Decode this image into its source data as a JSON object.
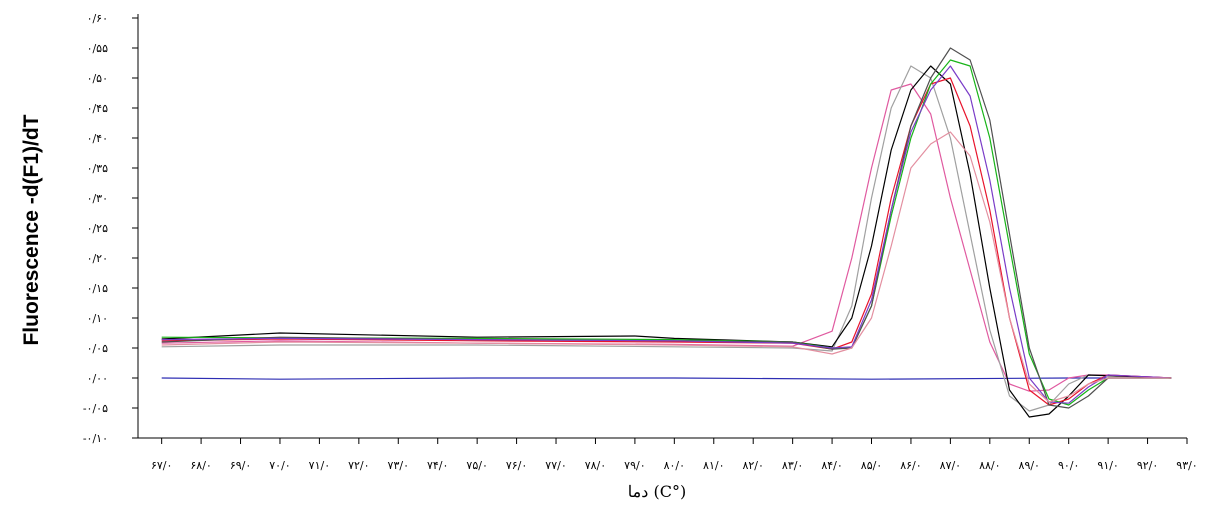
{
  "chart_data": {
    "type": "line",
    "title": "",
    "ylabel": "Fluorescence -d(F1)/dT",
    "xlabel": "(°C) دما",
    "xlim": [
      66.4,
      93.0
    ],
    "ylim": [
      -0.1,
      0.6
    ],
    "grid": false,
    "legend": "none",
    "y_ticks": [
      {
        "value": 0.6,
        "label": "۰/۶۰"
      },
      {
        "value": 0.55,
        "label": "۰/۵۵"
      },
      {
        "value": 0.5,
        "label": "۰/۵۰"
      },
      {
        "value": 0.45,
        "label": "۰/۴۵"
      },
      {
        "value": 0.4,
        "label": "۰/۴۰"
      },
      {
        "value": 0.35,
        "label": "۰/۳۵"
      },
      {
        "value": 0.3,
        "label": "۰/۳۰"
      },
      {
        "value": 0.25,
        "label": "۰/۲۵"
      },
      {
        "value": 0.2,
        "label": "۰/۲۰"
      },
      {
        "value": 0.15,
        "label": "۰/۱۵"
      },
      {
        "value": 0.1,
        "label": "۰/۱۰"
      },
      {
        "value": 0.05,
        "label": "۰/۰۵"
      },
      {
        "value": 0.0,
        "label": "۰/۰۰"
      },
      {
        "value": -0.05,
        "label": "-۰/۰۵"
      },
      {
        "value": -0.1,
        "label": "-۰/۱۰"
      }
    ],
    "x_ticks": [
      {
        "value": 67,
        "label": "۶۷/۰"
      },
      {
        "value": 68,
        "label": "۶۸/۰"
      },
      {
        "value": 69,
        "label": "۶۹/۰"
      },
      {
        "value": 70,
        "label": "۷۰/۰"
      },
      {
        "value": 71,
        "label": "۷۱/۰"
      },
      {
        "value": 72,
        "label": "۷۲/۰"
      },
      {
        "value": 73,
        "label": "۷۳/۰"
      },
      {
        "value": 74,
        "label": "۷۴/۰"
      },
      {
        "value": 75,
        "label": "۷۵/۰"
      },
      {
        "value": 76,
        "label": "۷۶/۰"
      },
      {
        "value": 77,
        "label": "۷۷/۰"
      },
      {
        "value": 78,
        "label": "۷۸/۰"
      },
      {
        "value": 79,
        "label": "۷۹/۰"
      },
      {
        "value": 80,
        "label": "۸۰/۰"
      },
      {
        "value": 81,
        "label": "۸۱/۰"
      },
      {
        "value": 82,
        "label": "۸۲/۰"
      },
      {
        "value": 83,
        "label": "۸۳/۰"
      },
      {
        "value": 84,
        "label": "۸۴/۰"
      },
      {
        "value": 85,
        "label": "۸۵/۰"
      },
      {
        "value": 86,
        "label": "۸۶/۰"
      },
      {
        "value": 87,
        "label": "۸۷/۰"
      },
      {
        "value": 88,
        "label": "۸۸/۰"
      },
      {
        "value": 89,
        "label": "۸۹/۰"
      },
      {
        "value": 90,
        "label": "۹۰/۰"
      },
      {
        "value": 91,
        "label": "۹۱/۰"
      },
      {
        "value": 92,
        "label": "۹۲/۰"
      },
      {
        "value": 93,
        "label": "۹۳/۰"
      }
    ],
    "series": [
      {
        "color": "#2d2db3",
        "points": [
          [
            67,
            0.0
          ],
          [
            70,
            -0.002
          ],
          [
            75,
            0.0
          ],
          [
            80,
            0.0
          ],
          [
            85,
            -0.002
          ],
          [
            90,
            0.0
          ],
          [
            92.6,
            0.0
          ]
        ]
      },
      {
        "color": "#e05aa0",
        "points": [
          [
            67,
            0.058
          ],
          [
            70,
            0.062
          ],
          [
            75,
            0.058
          ],
          [
            80,
            0.056
          ],
          [
            83,
            0.053
          ],
          [
            84,
            0.078
          ],
          [
            84.5,
            0.2
          ],
          [
            85,
            0.35
          ],
          [
            85.5,
            0.48
          ],
          [
            86,
            0.49
          ],
          [
            86.5,
            0.44
          ],
          [
            87,
            0.3
          ],
          [
            87.5,
            0.18
          ],
          [
            88,
            0.06
          ],
          [
            88.5,
            -0.01
          ],
          [
            89,
            -0.022
          ],
          [
            89.5,
            -0.02
          ],
          [
            90,
            0.0
          ],
          [
            90.5,
            0.005
          ],
          [
            91,
            0.005
          ],
          [
            92.6,
            0.0
          ]
        ]
      },
      {
        "color": "#a0a0a0",
        "points": [
          [
            67,
            0.052
          ],
          [
            70,
            0.055
          ],
          [
            75,
            0.055
          ],
          [
            80,
            0.052
          ],
          [
            83,
            0.05
          ],
          [
            84,
            0.045
          ],
          [
            84.5,
            0.12
          ],
          [
            85,
            0.3
          ],
          [
            85.5,
            0.45
          ],
          [
            86,
            0.52
          ],
          [
            86.5,
            0.5
          ],
          [
            87,
            0.4
          ],
          [
            87.5,
            0.24
          ],
          [
            88,
            0.08
          ],
          [
            88.5,
            -0.03
          ],
          [
            89,
            -0.055
          ],
          [
            89.5,
            -0.045
          ],
          [
            90,
            -0.01
          ],
          [
            90.5,
            0.005
          ],
          [
            92.6,
            0.0
          ]
        ]
      },
      {
        "color": "#000000",
        "points": [
          [
            67,
            0.065
          ],
          [
            70,
            0.075
          ],
          [
            75,
            0.068
          ],
          [
            79,
            0.07
          ],
          [
            80,
            0.066
          ],
          [
            83,
            0.06
          ],
          [
            84,
            0.052
          ],
          [
            84.5,
            0.1
          ],
          [
            85,
            0.22
          ],
          [
            85.5,
            0.38
          ],
          [
            86,
            0.48
          ],
          [
            86.5,
            0.52
          ],
          [
            87,
            0.49
          ],
          [
            87.5,
            0.34
          ],
          [
            88,
            0.15
          ],
          [
            88.5,
            -0.02
          ],
          [
            89,
            -0.065
          ],
          [
            89.5,
            -0.06
          ],
          [
            90,
            -0.03
          ],
          [
            90.5,
            0.005
          ],
          [
            92.6,
            0.0
          ]
        ]
      },
      {
        "color": "#e8142c",
        "points": [
          [
            67,
            0.062
          ],
          [
            70,
            0.065
          ],
          [
            75,
            0.062
          ],
          [
            80,
            0.06
          ],
          [
            83,
            0.058
          ],
          [
            84,
            0.048
          ],
          [
            84.5,
            0.06
          ],
          [
            85,
            0.14
          ],
          [
            85.5,
            0.3
          ],
          [
            86,
            0.42
          ],
          [
            86.5,
            0.49
          ],
          [
            87,
            0.5
          ],
          [
            87.5,
            0.42
          ],
          [
            88,
            0.28
          ],
          [
            88.5,
            0.1
          ],
          [
            89,
            -0.02
          ],
          [
            89.5,
            -0.045
          ],
          [
            90,
            -0.035
          ],
          [
            90.5,
            -0.01
          ],
          [
            91,
            0.005
          ],
          [
            92.6,
            0.0
          ]
        ]
      },
      {
        "color": "#18b418",
        "points": [
          [
            67,
            0.068
          ],
          [
            70,
            0.067
          ],
          [
            75,
            0.066
          ],
          [
            80,
            0.064
          ],
          [
            83,
            0.06
          ],
          [
            84,
            0.05
          ],
          [
            84.5,
            0.05
          ],
          [
            85,
            0.12
          ],
          [
            85.5,
            0.27
          ],
          [
            86,
            0.4
          ],
          [
            86.5,
            0.49
          ],
          [
            87,
            0.53
          ],
          [
            87.5,
            0.52
          ],
          [
            88,
            0.4
          ],
          [
            88.5,
            0.22
          ],
          [
            89,
            0.04
          ],
          [
            89.5,
            -0.035
          ],
          [
            90,
            -0.045
          ],
          [
            90.5,
            -0.02
          ],
          [
            91,
            0.0
          ],
          [
            92.6,
            0.0
          ]
        ]
      },
      {
        "color": "#505050",
        "points": [
          [
            67,
            0.06
          ],
          [
            70,
            0.068
          ],
          [
            75,
            0.064
          ],
          [
            80,
            0.062
          ],
          [
            83,
            0.06
          ],
          [
            84,
            0.048
          ],
          [
            84.5,
            0.05
          ],
          [
            85,
            0.12
          ],
          [
            85.5,
            0.28
          ],
          [
            86,
            0.42
          ],
          [
            86.5,
            0.5
          ],
          [
            87,
            0.55
          ],
          [
            87.5,
            0.53
          ],
          [
            88,
            0.43
          ],
          [
            88.5,
            0.24
          ],
          [
            89,
            0.05
          ],
          [
            89.5,
            -0.045
          ],
          [
            90,
            -0.05
          ],
          [
            90.5,
            -0.03
          ],
          [
            91,
            0.0
          ],
          [
            92.6,
            0.0
          ]
        ]
      },
      {
        "color": "#7a3cc8",
        "points": [
          [
            67,
            0.064
          ],
          [
            70,
            0.066
          ],
          [
            75,
            0.064
          ],
          [
            80,
            0.062
          ],
          [
            83,
            0.058
          ],
          [
            84,
            0.05
          ],
          [
            84.5,
            0.052
          ],
          [
            85,
            0.13
          ],
          [
            85.5,
            0.28
          ],
          [
            86,
            0.41
          ],
          [
            86.5,
            0.48
          ],
          [
            87,
            0.52
          ],
          [
            87.5,
            0.47
          ],
          [
            88,
            0.33
          ],
          [
            88.5,
            0.15
          ],
          [
            89,
            0.0
          ],
          [
            89.5,
            -0.04
          ],
          [
            90,
            -0.042
          ],
          [
            90.5,
            -0.015
          ],
          [
            91,
            0.005
          ],
          [
            92.6,
            0.0
          ]
        ]
      },
      {
        "color": "#e38fa0",
        "points": [
          [
            67,
            0.055
          ],
          [
            70,
            0.06
          ],
          [
            75,
            0.058
          ],
          [
            80,
            0.055
          ],
          [
            83,
            0.052
          ],
          [
            84,
            0.04
          ],
          [
            84.5,
            0.05
          ],
          [
            85,
            0.1
          ],
          [
            85.5,
            0.22
          ],
          [
            86,
            0.35
          ],
          [
            86.5,
            0.39
          ],
          [
            87,
            0.41
          ],
          [
            87.5,
            0.37
          ],
          [
            88,
            0.26
          ],
          [
            88.5,
            0.1
          ],
          [
            89,
            -0.01
          ],
          [
            89.5,
            -0.04
          ],
          [
            90,
            -0.03
          ],
          [
            90.5,
            -0.01
          ],
          [
            91,
            0.0
          ],
          [
            92.6,
            0.0
          ]
        ]
      }
    ]
  }
}
